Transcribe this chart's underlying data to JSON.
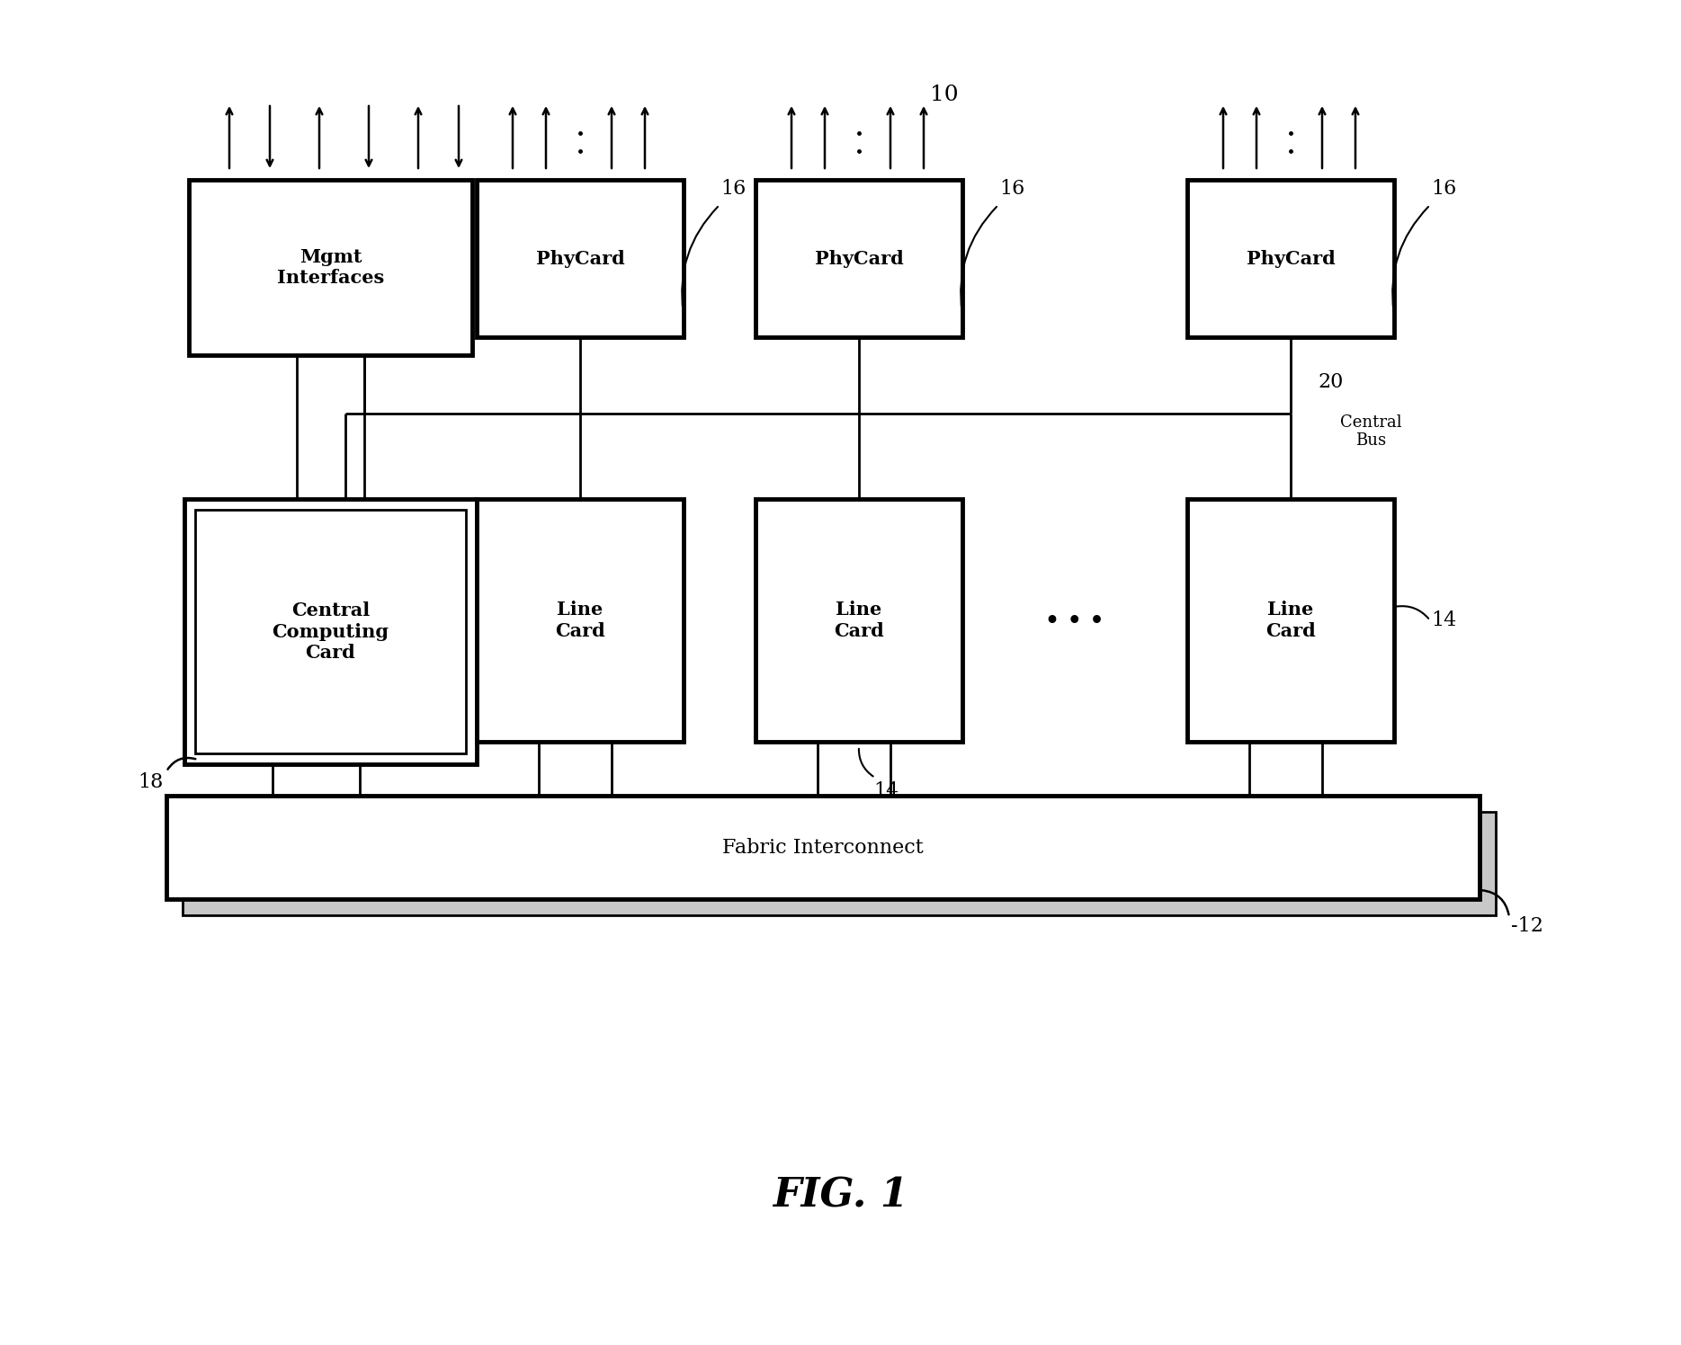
{
  "bg_color": "#ffffff",
  "fig_label": "10",
  "fig_title": "FIG. 1",
  "fabric_label": "Fabric Interconnect",
  "fabric_ref": "12",
  "ccc_label": "Central\nComputing\nCard",
  "ccc_ref": "18",
  "mgmt_label": "Mgmt\nInterfaces",
  "lc_label": "Line\nCard",
  "lc_ref1": "14",
  "lc_ref2": "14",
  "phy_label": "PhyCard",
  "phy_ref": "16",
  "central_bus_label": "Central\nBus",
  "central_bus_ref": "20",
  "dots": "• • •"
}
